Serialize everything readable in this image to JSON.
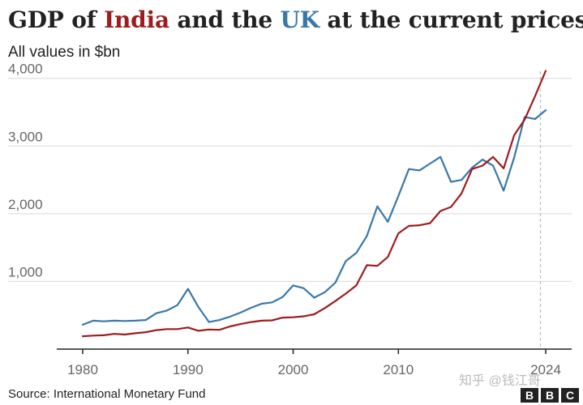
{
  "title": {
    "prefix": "GDP of ",
    "india": "India",
    "middle": " and the ",
    "uk": "UK",
    "suffix": " at the current prices"
  },
  "subtitle": "All values in $bn",
  "source": "Source: International Monetary Fund",
  "watermark": "知乎 @钱江哥",
  "logo": [
    "B",
    "B",
    "C"
  ],
  "colors": {
    "india": "#9e1b1e",
    "uk": "#3a78a8",
    "grid": "#d9d9d9",
    "axis": "#222222"
  },
  "chart_data": {
    "type": "line",
    "xlim": [
      1977.5,
      2026
    ],
    "ylim": [
      0,
      4200
    ],
    "x_ticks": [
      1980,
      1990,
      2000,
      2010,
      2024
    ],
    "x_tick_labels": [
      "1980",
      "1990",
      "2000",
      "2010",
      "2024"
    ],
    "y_ticks": [
      1000,
      2000,
      3000,
      4000
    ],
    "y_tick_labels": [
      "1,000",
      "2,000",
      "3,000",
      "4,000"
    ],
    "reference_line_x": 2023.5,
    "series": [
      {
        "name": "India",
        "color": "#9e1b1e",
        "x": [
          1980,
          1981,
          1982,
          1983,
          1984,
          1985,
          1986,
          1987,
          1988,
          1989,
          1990,
          1991,
          1992,
          1993,
          1994,
          1995,
          1996,
          1997,
          1998,
          1999,
          2000,
          2001,
          2002,
          2003,
          2004,
          2005,
          2006,
          2007,
          2008,
          2009,
          2010,
          2011,
          2012,
          2013,
          2014,
          2015,
          2016,
          2017,
          2018,
          2019,
          2020,
          2021,
          2022,
          2023,
          2024
        ],
        "values": [
          190,
          200,
          205,
          225,
          215,
          235,
          250,
          280,
          295,
          295,
          320,
          270,
          290,
          285,
          335,
          370,
          400,
          420,
          425,
          465,
          470,
          485,
          515,
          605,
          710,
          820,
          940,
          1240,
          1230,
          1360,
          1710,
          1820,
          1830,
          1860,
          2040,
          2100,
          2300,
          2660,
          2710,
          2840,
          2670,
          3160,
          3390,
          3740,
          4110
        ]
      },
      {
        "name": "UK",
        "color": "#3a78a8",
        "x": [
          1980,
          1981,
          1982,
          1983,
          1984,
          1985,
          1986,
          1987,
          1988,
          1989,
          1990,
          1991,
          1992,
          1993,
          1994,
          1995,
          1996,
          1997,
          1998,
          1999,
          2000,
          2001,
          2002,
          2003,
          2004,
          2005,
          2006,
          2007,
          2008,
          2009,
          2010,
          2011,
          2012,
          2013,
          2014,
          2015,
          2016,
          2017,
          2018,
          2019,
          2020,
          2021,
          2022,
          2023,
          2024
        ],
        "values": [
          360,
          420,
          410,
          420,
          415,
          420,
          430,
          530,
          570,
          650,
          890,
          620,
          400,
          430,
          480,
          540,
          610,
          670,
          690,
          770,
          940,
          900,
          760,
          840,
          980,
          1300,
          1420,
          1670,
          2110,
          1880,
          2260,
          2660,
          2640,
          2740,
          2840,
          2470,
          2500,
          2680,
          2800,
          2710,
          2340,
          2830,
          3430,
          3400,
          3530
        ]
      }
    ]
  }
}
